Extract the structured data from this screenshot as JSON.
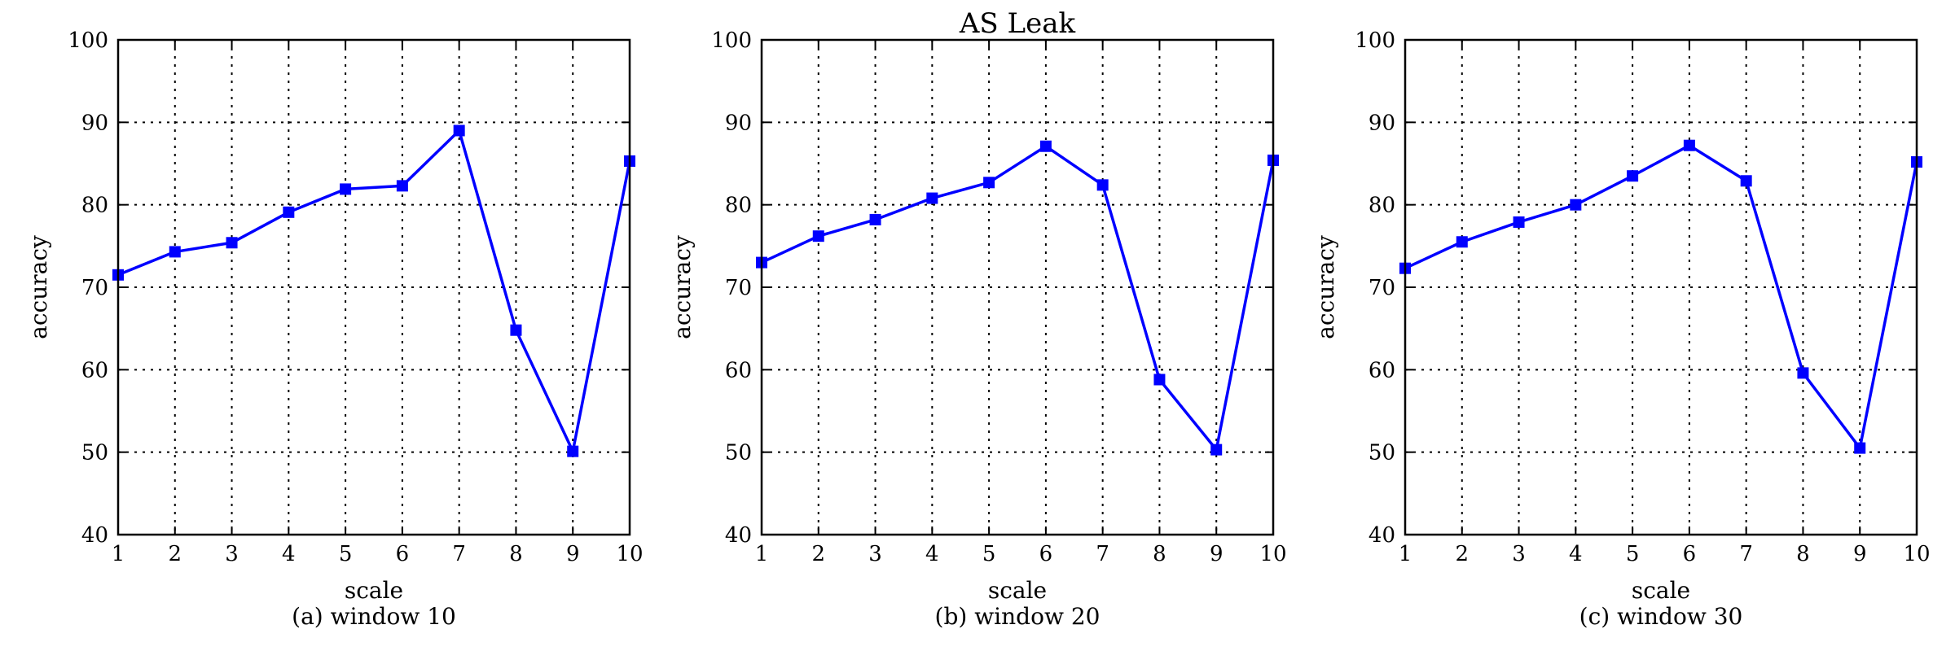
{
  "figure": {
    "title": "AS Leak",
    "line_color": "#0000ff"
  },
  "chart_data": [
    {
      "type": "line",
      "caption": "(a) window 10",
      "xlabel": "scale",
      "ylabel": "accuracy",
      "xlim": [
        1,
        10
      ],
      "ylim": [
        40,
        100
      ],
      "xticks": [
        1,
        2,
        3,
        4,
        5,
        6,
        7,
        8,
        9,
        10
      ],
      "yticks": [
        40,
        50,
        60,
        70,
        80,
        90,
        100
      ],
      "grid": true,
      "marker": "square",
      "x": [
        1,
        2,
        3,
        4,
        5,
        6,
        7,
        8,
        9,
        10
      ],
      "series": [
        {
          "values": [
            71.5,
            74.3,
            75.4,
            79.1,
            81.9,
            82.3,
            89.0,
            64.8,
            50.1,
            85.3
          ]
        }
      ]
    },
    {
      "type": "line",
      "caption": "(b) window 20",
      "xlabel": "scale",
      "ylabel": "accuracy",
      "xlim": [
        1,
        10
      ],
      "ylim": [
        40,
        100
      ],
      "xticks": [
        1,
        2,
        3,
        4,
        5,
        6,
        7,
        8,
        9,
        10
      ],
      "yticks": [
        40,
        50,
        60,
        70,
        80,
        90,
        100
      ],
      "grid": true,
      "marker": "square",
      "x": [
        1,
        2,
        3,
        4,
        5,
        6,
        7,
        8,
        9,
        10
      ],
      "series": [
        {
          "values": [
            73.0,
            76.2,
            78.2,
            80.8,
            82.7,
            87.1,
            82.4,
            58.8,
            50.3,
            85.4
          ]
        }
      ]
    },
    {
      "type": "line",
      "caption": "(c) window 30",
      "xlabel": "scale",
      "ylabel": "accuracy",
      "xlim": [
        1,
        10
      ],
      "ylim": [
        40,
        100
      ],
      "xticks": [
        1,
        2,
        3,
        4,
        5,
        6,
        7,
        8,
        9,
        10
      ],
      "yticks": [
        40,
        50,
        60,
        70,
        80,
        90,
        100
      ],
      "grid": true,
      "marker": "square",
      "x": [
        1,
        2,
        3,
        4,
        5,
        6,
        7,
        8,
        9,
        10
      ],
      "series": [
        {
          "values": [
            72.3,
            75.5,
            77.9,
            80.0,
            83.5,
            87.2,
            82.9,
            59.6,
            50.5,
            85.2
          ]
        }
      ]
    }
  ]
}
